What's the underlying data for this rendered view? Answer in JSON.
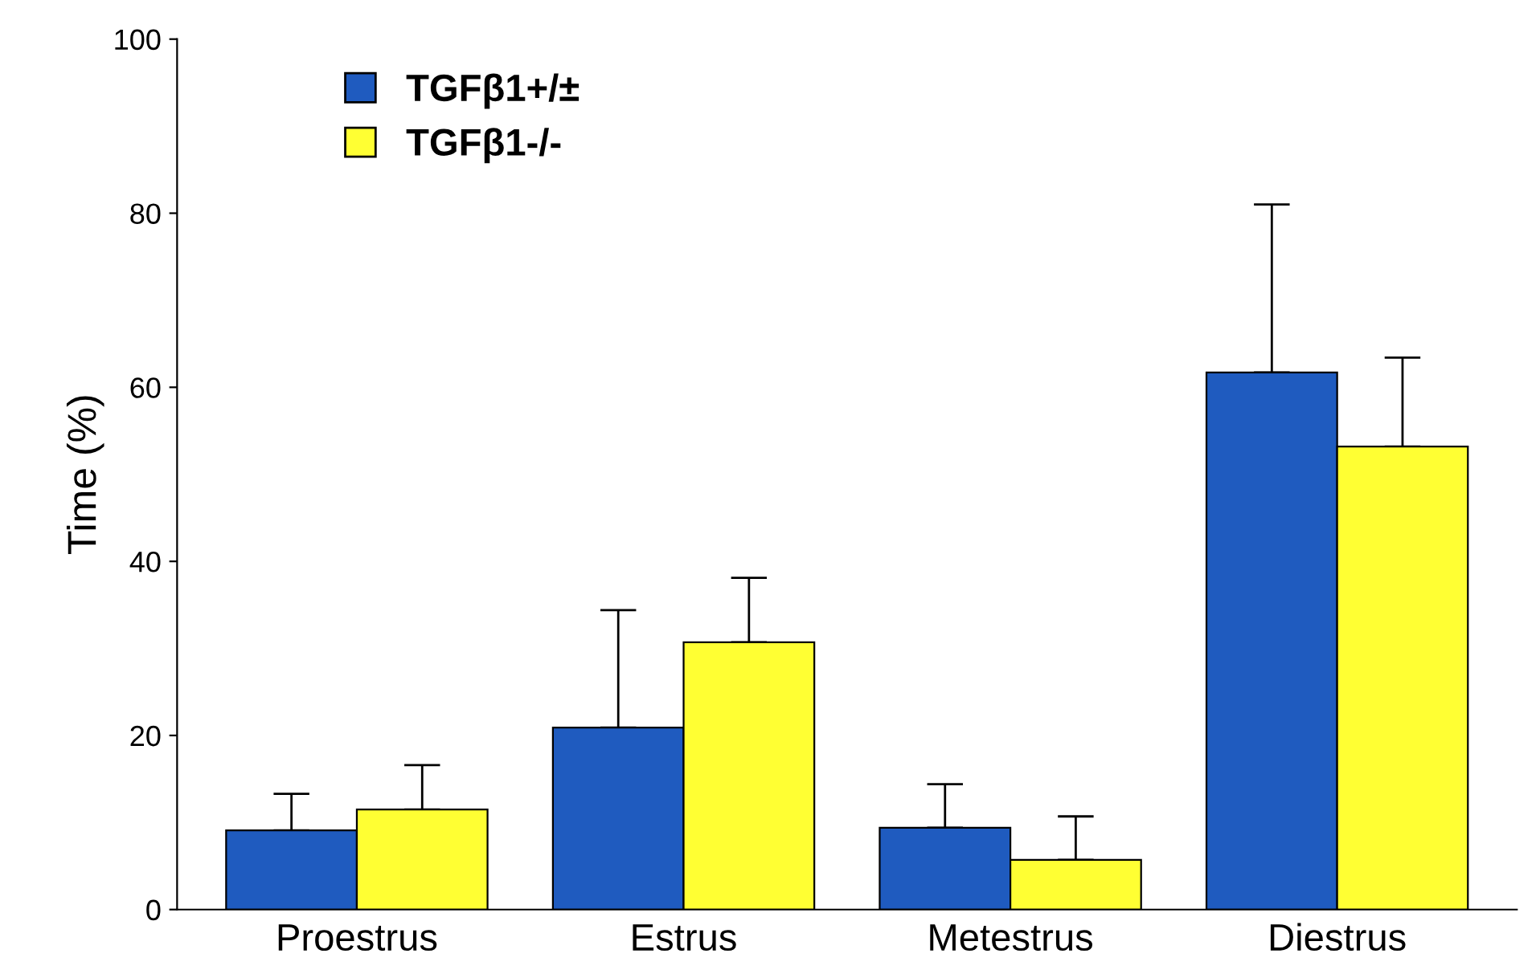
{
  "chart_data": {
    "type": "bar",
    "ylabel": "Time (%)",
    "categories": [
      "Proestrus",
      "Estrus",
      "Metestrus",
      "Diestrus"
    ],
    "series": [
      {
        "name": "TGFβ1+/±",
        "color": "#1f5bbf",
        "values": [
          9.1,
          20.9,
          9.4,
          61.7
        ],
        "errors": [
          [
            9.1,
            13.3
          ],
          [
            20.9,
            34.4
          ],
          [
            9.4,
            14.4
          ],
          [
            61.7,
            81
          ]
        ]
      },
      {
        "name": "TGFβ1-/-",
        "color": "#ffff33",
        "values": [
          11.5,
          30.7,
          5.7,
          53.2
        ],
        "errors": [
          [
            11.5,
            16.6
          ],
          [
            30.7,
            38.1
          ],
          [
            5.7,
            10.7
          ],
          [
            53.2,
            63.4
          ]
        ]
      }
    ],
    "ylim": [
      0,
      100
    ],
    "yticks": [
      0,
      20,
      40,
      60,
      80,
      100
    ],
    "grid": false,
    "legend": "top left"
  }
}
